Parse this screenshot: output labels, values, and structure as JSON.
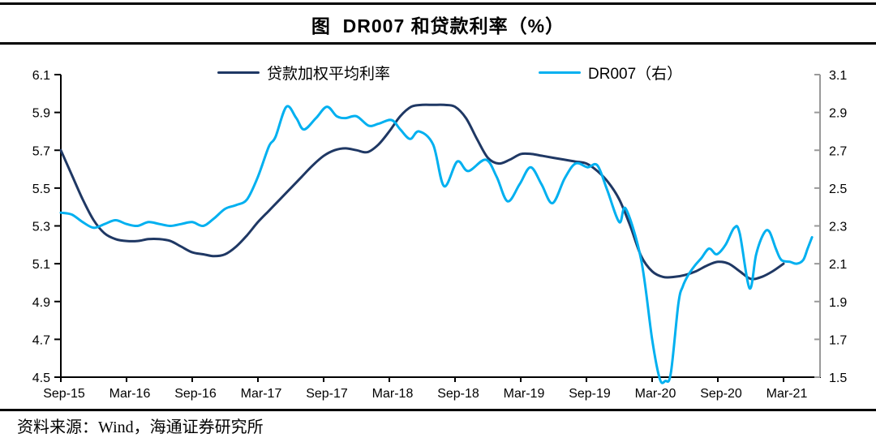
{
  "title_bar": {
    "title": "图  DR007 和贷款利率（%）"
  },
  "legend": {
    "items": [
      {
        "label": "贷款加权平均利率",
        "color": "#1f3864"
      },
      {
        "label": "DR007（右）",
        "color": "#00b0f0"
      }
    ]
  },
  "footer": {
    "text": "资料来源：Wind，海通证券研究所"
  },
  "chart_data": {
    "type": "line",
    "title": "图 DR007 和贷款利率（%）",
    "legend_position": "top",
    "grid": false,
    "x_unit": "months since Sep-2015 (x ticks every 6 months)",
    "x_tick_labels": [
      "Sep-15",
      "Mar-16",
      "Sep-16",
      "Mar-17",
      "Sep-17",
      "Mar-18",
      "Sep-18",
      "Mar-19",
      "Sep-19",
      "Mar-20",
      "Sep-20",
      "Mar-21"
    ],
    "x_tick_months": [
      0,
      6,
      12,
      18,
      24,
      30,
      36,
      42,
      48,
      54,
      60,
      66
    ],
    "left_axis": {
      "min": 4.5,
      "max": 6.1,
      "step": 0.2,
      "ticks": [
        6.1,
        5.9,
        5.7,
        5.5,
        5.3,
        5.1,
        4.9,
        4.7,
        4.5
      ]
    },
    "right_axis": {
      "min": 1.5,
      "max": 3.1,
      "step": 0.2,
      "ticks": [
        3.1,
        2.9,
        2.7,
        2.5,
        2.3,
        2.1,
        1.9,
        1.7,
        1.5
      ]
    },
    "colors": {
      "axis": "#000000",
      "right_axis": "#999999",
      "loan_rate": "#1f3864",
      "dr007": "#00b0f0"
    },
    "series": [
      {
        "name": "贷款加权平均利率",
        "axis": "left",
        "color": "#1f3864",
        "points": [
          [
            0,
            5.7
          ],
          [
            1,
            5.57
          ],
          [
            2,
            5.44
          ],
          [
            3,
            5.33
          ],
          [
            4,
            5.26
          ],
          [
            5,
            5.23
          ],
          [
            6,
            5.22
          ],
          [
            7,
            5.22
          ],
          [
            8,
            5.23
          ],
          [
            9,
            5.23
          ],
          [
            10,
            5.22
          ],
          [
            11,
            5.19
          ],
          [
            12,
            5.16
          ],
          [
            13,
            5.15
          ],
          [
            14,
            5.14
          ],
          [
            15,
            5.15
          ],
          [
            16,
            5.19
          ],
          [
            17,
            5.25
          ],
          [
            18,
            5.32
          ],
          [
            19,
            5.38
          ],
          [
            20,
            5.44
          ],
          [
            21,
            5.5
          ],
          [
            22,
            5.56
          ],
          [
            23,
            5.62
          ],
          [
            24,
            5.67
          ],
          [
            25,
            5.7
          ],
          [
            26,
            5.71
          ],
          [
            27,
            5.7
          ],
          [
            28,
            5.69
          ],
          [
            29,
            5.73
          ],
          [
            30,
            5.8
          ],
          [
            31,
            5.88
          ],
          [
            32,
            5.93
          ],
          [
            33,
            5.94
          ],
          [
            34,
            5.94
          ],
          [
            35,
            5.94
          ],
          [
            36,
            5.93
          ],
          [
            37,
            5.87
          ],
          [
            38,
            5.76
          ],
          [
            39,
            5.66
          ],
          [
            40,
            5.63
          ],
          [
            41,
            5.65
          ],
          [
            42,
            5.68
          ],
          [
            43,
            5.68
          ],
          [
            44,
            5.67
          ],
          [
            45,
            5.66
          ],
          [
            46,
            5.65
          ],
          [
            47,
            5.64
          ],
          [
            48,
            5.63
          ],
          [
            49,
            5.59
          ],
          [
            50,
            5.53
          ],
          [
            51,
            5.44
          ],
          [
            52,
            5.3
          ],
          [
            53,
            5.14
          ],
          [
            54,
            5.06
          ],
          [
            55,
            5.03
          ],
          [
            56,
            5.03
          ],
          [
            57,
            5.04
          ],
          [
            58,
            5.06
          ],
          [
            59,
            5.09
          ],
          [
            60,
            5.11
          ],
          [
            61,
            5.1
          ],
          [
            62,
            5.06
          ],
          [
            63,
            5.02
          ],
          [
            64,
            5.03
          ],
          [
            65,
            5.06
          ],
          [
            66,
            5.1
          ]
        ]
      },
      {
        "name": "DR007（右）",
        "axis": "right",
        "color": "#00b0f0",
        "points": [
          [
            0,
            2.37
          ],
          [
            1,
            2.36
          ],
          [
            2,
            2.32
          ],
          [
            3,
            2.29
          ],
          [
            4,
            2.31
          ],
          [
            5,
            2.33
          ],
          [
            6,
            2.31
          ],
          [
            7,
            2.3
          ],
          [
            8,
            2.32
          ],
          [
            9,
            2.31
          ],
          [
            10,
            2.3
          ],
          [
            11,
            2.31
          ],
          [
            12,
            2.32
          ],
          [
            13,
            2.3
          ],
          [
            14,
            2.34
          ],
          [
            15,
            2.39
          ],
          [
            16,
            2.41
          ],
          [
            17,
            2.44
          ],
          [
            18,
            2.56
          ],
          [
            19,
            2.72
          ],
          [
            19.6,
            2.77
          ],
          [
            20.6,
            2.93
          ],
          [
            21.5,
            2.87
          ],
          [
            22.2,
            2.81
          ],
          [
            23.3,
            2.87
          ],
          [
            24.3,
            2.93
          ],
          [
            25.2,
            2.88
          ],
          [
            26,
            2.87
          ],
          [
            27,
            2.88
          ],
          [
            28.1,
            2.83
          ],
          [
            29,
            2.84
          ],
          [
            30.2,
            2.86
          ],
          [
            31,
            2.81
          ],
          [
            31.9,
            2.76
          ],
          [
            32.7,
            2.8
          ],
          [
            34,
            2.73
          ],
          [
            35,
            2.51
          ],
          [
            36.2,
            2.64
          ],
          [
            37.2,
            2.59
          ],
          [
            38.8,
            2.65
          ],
          [
            39.8,
            2.56
          ],
          [
            40.8,
            2.43
          ],
          [
            41.9,
            2.52
          ],
          [
            42.9,
            2.61
          ],
          [
            43.9,
            2.52
          ],
          [
            44.9,
            2.42
          ],
          [
            46,
            2.55
          ],
          [
            47,
            2.63
          ],
          [
            48.1,
            2.61
          ],
          [
            49,
            2.62
          ],
          [
            49.9,
            2.49
          ],
          [
            51,
            2.32
          ],
          [
            51.6,
            2.39
          ],
          [
            53,
            2.12
          ],
          [
            54,
            1.7
          ],
          [
            54.7,
            1.49
          ],
          [
            55.2,
            1.48
          ],
          [
            55.7,
            1.52
          ],
          [
            56.4,
            1.89
          ],
          [
            56.8,
            1.98
          ],
          [
            57.3,
            2.04
          ],
          [
            57.9,
            2.09
          ],
          [
            58.5,
            2.13
          ],
          [
            59.2,
            2.18
          ],
          [
            59.9,
            2.15
          ],
          [
            60.7,
            2.2
          ],
          [
            61.5,
            2.29
          ],
          [
            62,
            2.26
          ],
          [
            62.9,
            1.97
          ],
          [
            63.5,
            2.15
          ],
          [
            64.2,
            2.26
          ],
          [
            64.7,
            2.27
          ],
          [
            65.3,
            2.18
          ],
          [
            65.8,
            2.12
          ],
          [
            66.6,
            2.11
          ],
          [
            67.2,
            2.1
          ],
          [
            67.8,
            2.12
          ],
          [
            68.2,
            2.18
          ],
          [
            68.6,
            2.24
          ]
        ]
      }
    ]
  }
}
